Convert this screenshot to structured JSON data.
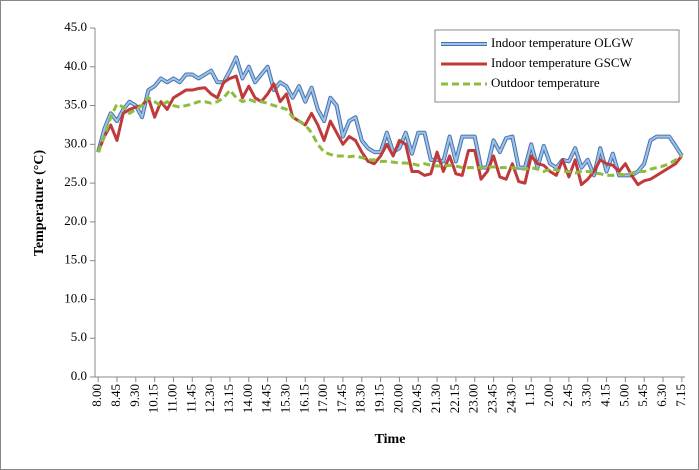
{
  "chart_data": {
    "type": "line",
    "x_label": "Time",
    "y_label": "Temperature (°C)",
    "categories": [
      "8.00",
      null,
      null,
      "8.45",
      null,
      null,
      "9.30",
      null,
      null,
      "10.15",
      null,
      null,
      "11.00",
      null,
      null,
      "11.45",
      null,
      null,
      "12.30",
      null,
      null,
      "13.15",
      null,
      null,
      "14.00",
      null,
      null,
      "14.45",
      null,
      null,
      "15.30",
      null,
      null,
      "16.15",
      null,
      null,
      "17.00",
      null,
      null,
      "17.45",
      null,
      null,
      "18.30",
      null,
      null,
      "19.15",
      null,
      null,
      "20.00",
      null,
      null,
      "20.45",
      null,
      null,
      "21.30",
      null,
      null,
      "22.15",
      null,
      null,
      "23.00",
      null,
      null,
      "23.45",
      null,
      null,
      "24.30",
      null,
      null,
      "1.15",
      null,
      null,
      "2.00",
      null,
      null,
      "2.45",
      null,
      null,
      "3.30",
      null,
      null,
      "4.15",
      null,
      null,
      "5.00",
      null,
      null,
      "5.45",
      null,
      null,
      "6.30",
      null,
      null,
      "7.15"
    ],
    "ylim": [
      0,
      45
    ],
    "yticks": [
      {
        "value": 0,
        "label": "0.0"
      },
      {
        "value": 5,
        "label": "5.0"
      },
      {
        "value": 10,
        "label": "10.0"
      },
      {
        "value": 15,
        "label": "15.0"
      },
      {
        "value": 20,
        "label": "20.0"
      },
      {
        "value": 25,
        "label": "25.0"
      },
      {
        "value": 30,
        "label": "30.0"
      },
      {
        "value": 35,
        "label": "35.0"
      },
      {
        "value": 40,
        "label": "40.0"
      },
      {
        "value": 45,
        "label": "45.0"
      }
    ],
    "grid": false,
    "legend": "top-right",
    "series": [
      {
        "name": "Indoor temperature OLGW",
        "color": "#9dc3e6",
        "outline": "#4a72b0",
        "dash": "solid",
        "values": [
          29.0,
          32.0,
          34.0,
          33.0,
          34.5,
          35.5,
          35.0,
          33.5,
          37.0,
          37.5,
          38.5,
          38.0,
          38.5,
          38.0,
          39.0,
          39.0,
          38.5,
          39.0,
          39.5,
          38.0,
          38.0,
          39.5,
          41.2,
          38.5,
          40.0,
          38.0,
          39.0,
          40.0,
          37.0,
          38.0,
          37.5,
          36.0,
          37.5,
          35.5,
          37.3,
          34.5,
          33.0,
          36.0,
          35.0,
          31.0,
          33.0,
          33.5,
          30.5,
          29.5,
          29.0,
          29.0,
          31.5,
          29.0,
          29.5,
          31.5,
          28.8,
          31.5,
          31.5,
          28.0,
          28.0,
          27.8,
          31.0,
          27.8,
          31.0,
          31.0,
          31.0,
          27.0,
          27.0,
          30.5,
          29.0,
          30.8,
          31.0,
          27.0,
          27.0,
          30.0,
          27.0,
          29.8,
          27.5,
          27.0,
          28.0,
          27.8,
          29.5,
          27.0,
          28.0,
          26.0,
          29.5,
          26.5,
          28.8,
          26.0,
          26.0,
          26.0,
          26.5,
          27.5,
          30.5,
          31.0,
          31.0,
          31.0,
          29.8,
          28.5
        ]
      },
      {
        "name": "Indoor temperature GSCW",
        "color": "#c0393b",
        "dash": "solid",
        "values": [
          29.0,
          31.0,
          32.5,
          30.5,
          34.0,
          34.5,
          34.8,
          35.0,
          36.0,
          33.5,
          35.5,
          34.5,
          36.0,
          36.5,
          37.0,
          37.0,
          37.2,
          37.3,
          36.5,
          36.0,
          38.0,
          38.5,
          38.8,
          36.0,
          37.5,
          36.0,
          35.5,
          36.5,
          37.8,
          35.5,
          36.5,
          33.5,
          33.0,
          32.5,
          34.0,
          32.5,
          30.5,
          33.0,
          31.5,
          30.0,
          31.0,
          30.5,
          29.0,
          27.8,
          27.5,
          28.5,
          30.0,
          28.5,
          30.5,
          30.0,
          26.5,
          26.5,
          26.0,
          26.2,
          29.0,
          26.5,
          28.5,
          26.2,
          26.0,
          29.2,
          29.2,
          25.5,
          26.5,
          28.5,
          25.8,
          25.5,
          27.5,
          25.2,
          25.0,
          28.5,
          27.5,
          27.3,
          26.5,
          26.0,
          28.0,
          25.8,
          28.0,
          24.8,
          25.5,
          26.5,
          28.0,
          27.5,
          27.3,
          26.5,
          27.5,
          26.0,
          24.8,
          25.3,
          25.5,
          26.0,
          26.5,
          27.0,
          27.5,
          28.5
        ]
      },
      {
        "name": "Outdoor temperature",
        "color": "#8cbd3f",
        "dash": "dashed",
        "values": [
          29.0,
          31.0,
          33.5,
          35.2,
          34.8,
          34.0,
          34.5,
          35.0,
          36.0,
          35.5,
          35.0,
          35.5,
          35.0,
          34.8,
          35.0,
          35.2,
          35.5,
          35.5,
          35.3,
          35.5,
          36.0,
          37.0,
          36.0,
          35.5,
          35.8,
          35.5,
          35.5,
          35.3,
          35.0,
          34.8,
          34.5,
          33.5,
          33.0,
          32.5,
          31.5,
          30.0,
          29.0,
          28.7,
          28.5,
          28.5,
          28.4,
          28.5,
          28.3,
          28.0,
          28.0,
          27.8,
          27.8,
          27.7,
          27.6,
          27.6,
          27.5,
          27.3,
          27.5,
          27.3,
          27.2,
          27.2,
          27.3,
          27.2,
          27.0,
          27.0,
          27.0,
          27.0,
          27.0,
          27.1,
          27.0,
          27.0,
          27.0,
          26.8,
          26.8,
          27.0,
          26.8,
          26.5,
          26.8,
          26.7,
          26.5,
          26.5,
          26.3,
          26.5,
          26.5,
          26.3,
          26.2,
          26.0,
          26.0,
          26.2,
          26.0,
          26.3,
          26.5,
          26.5,
          26.8,
          27.0,
          27.2,
          27.5,
          28.0,
          28.5
        ]
      }
    ]
  }
}
